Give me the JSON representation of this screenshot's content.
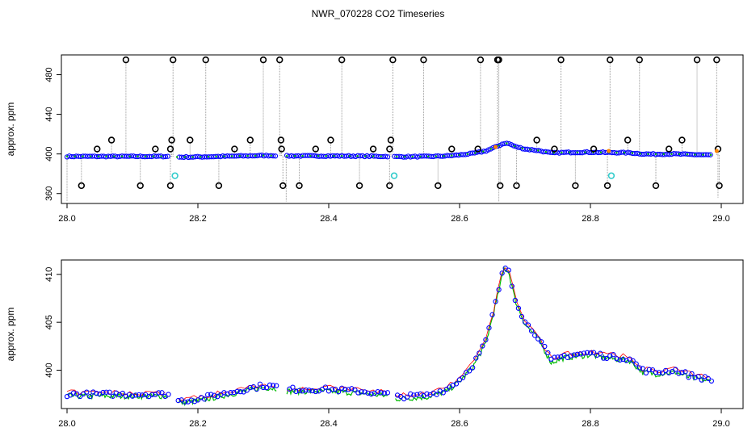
{
  "title": "NWR_070228  CO2 Timeseries",
  "colors": {
    "point_stroke": "#0000ff",
    "point_fill": "#0000ff",
    "outlier": "#000000",
    "flagged": "#33cccc",
    "drop_line": "#999999",
    "trace_green": "#00bb00",
    "trace_red": "#ff0000",
    "trace_orange": "#ff8800"
  },
  "chart_data": [
    {
      "type": "scatter",
      "title": "NWR_070228  CO2 Timeseries",
      "xlabel": "",
      "ylabel": "approx. ppm",
      "xlim": [
        28.0,
        29.0
      ],
      "ylim": [
        350,
        500
      ],
      "xticks": [
        "28.0",
        "28.2",
        "28.4",
        "28.6",
        "28.8",
        "29.0"
      ],
      "yticks": [
        "360",
        "400",
        "440",
        "480"
      ],
      "xtick_values": [
        28.0,
        28.2,
        28.4,
        28.6,
        28.8,
        29.0
      ],
      "ytick_values": [
        360,
        400,
        440,
        480
      ],
      "grid": false,
      "baseline": [
        [
          28.0,
          397.5
        ],
        [
          28.15,
          397.5
        ],
        [
          28.155,
          397.5
        ],
        [
          28.17,
          396.8
        ],
        [
          28.2,
          397.0
        ],
        [
          28.25,
          397.7
        ],
        [
          28.3,
          398.4
        ],
        [
          28.32,
          398.3
        ],
        [
          28.335,
          398.0
        ],
        [
          28.4,
          398.0
        ],
        [
          28.45,
          397.8
        ],
        [
          28.49,
          397.5
        ],
        [
          28.5,
          397.2
        ],
        [
          28.55,
          397.4
        ],
        [
          28.58,
          398.0
        ],
        [
          28.6,
          399.0
        ],
        [
          28.62,
          400.5
        ],
        [
          28.64,
          403.0
        ],
        [
          28.655,
          407.0
        ],
        [
          28.668,
          410.8
        ],
        [
          28.675,
          410.5
        ],
        [
          28.685,
          407.5
        ],
        [
          28.7,
          405.0
        ],
        [
          28.72,
          403.5
        ],
        [
          28.74,
          401.0
        ],
        [
          28.76,
          401.5
        ],
        [
          28.8,
          401.8
        ],
        [
          28.82,
          401.5
        ],
        [
          28.86,
          401.2
        ],
        [
          28.88,
          400.0
        ],
        [
          28.9,
          399.8
        ],
        [
          28.93,
          400.0
        ],
        [
          28.95,
          399.5
        ],
        [
          28.985,
          399.0
        ]
      ],
      "gaps": [
        [
          28.155,
          28.168
        ],
        [
          28.32,
          28.335
        ],
        [
          28.49,
          28.5
        ]
      ],
      "outliers_high": [
        28.09,
        28.162,
        28.212,
        28.3,
        28.325,
        28.42,
        28.498,
        28.545,
        28.632,
        28.658,
        28.66,
        28.755,
        28.83,
        28.875,
        28.963,
        28.993
      ],
      "outliers_low": [
        28.022,
        28.112,
        28.158,
        28.232,
        28.33,
        28.355,
        28.447,
        28.493,
        28.567,
        28.662,
        28.687,
        28.777,
        28.826,
        28.9,
        28.997
      ],
      "outliers_mid_high": [
        [
          28.046,
          405
        ],
        [
          28.068,
          414
        ],
        [
          28.135,
          405
        ],
        [
          28.16,
          414
        ],
        [
          28.158,
          405
        ],
        [
          28.188,
          414
        ],
        [
          28.256,
          405
        ],
        [
          28.28,
          414
        ],
        [
          28.327,
          414
        ],
        [
          28.328,
          405
        ],
        [
          28.38,
          405
        ],
        [
          28.403,
          414
        ],
        [
          28.468,
          405
        ],
        [
          28.493,
          405
        ],
        [
          28.495,
          414
        ],
        [
          28.588,
          405
        ],
        [
          28.628,
          405
        ],
        [
          28.718,
          414
        ],
        [
          28.745,
          405
        ],
        [
          28.805,
          405
        ],
        [
          28.857,
          414
        ],
        [
          28.92,
          405
        ],
        [
          28.94,
          414
        ],
        [
          28.995,
          405
        ]
      ],
      "flagged_points": [
        [
          28.165,
          378
        ],
        [
          28.5,
          378
        ],
        [
          28.832,
          378
        ]
      ],
      "drop_lines": [
        [
          28.0,
          352
        ],
        [
          28.335,
          352
        ],
        [
          28.66,
          352
        ],
        [
          28.995,
          356
        ]
      ]
    },
    {
      "type": "scatter",
      "xlabel": "",
      "ylabel": "approx. ppm",
      "xlim": [
        28.0,
        29.0
      ],
      "ylim": [
        396,
        411.5
      ],
      "xticks": [
        "28.0",
        "28.2",
        "28.4",
        "28.6",
        "28.8",
        "29.0"
      ],
      "yticks": [
        "400",
        "405",
        "410"
      ],
      "xtick_values": [
        28.0,
        28.2,
        28.4,
        28.6,
        28.8,
        29.0
      ],
      "ytick_values": [
        400,
        405,
        410
      ],
      "grid": false
    }
  ]
}
